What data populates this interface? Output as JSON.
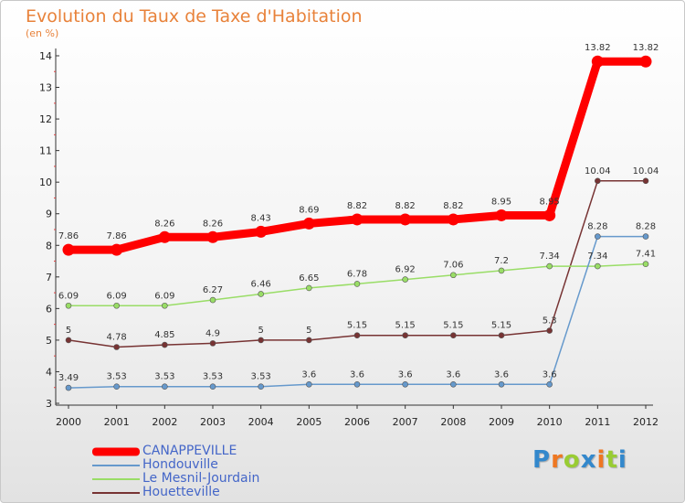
{
  "header": {
    "title": "Evolution du Taux de Taxe d'Habitation",
    "unit": "(en %)"
  },
  "chart_data": {
    "type": "line",
    "x": [
      "2000",
      "2001",
      "2002",
      "2003",
      "2004",
      "2005",
      "2006",
      "2007",
      "2008",
      "2009",
      "2010",
      "2011",
      "2012"
    ],
    "y_ticks": [
      3,
      4,
      5,
      6,
      7,
      8,
      9,
      10,
      11,
      12,
      13,
      14
    ],
    "ylim": [
      3,
      14
    ],
    "grid": false,
    "legend_position": "bottom-left",
    "series": [
      {
        "name": "CANAPPEVILLE",
        "color": "#ff0000",
        "values": [
          7.86,
          7.86,
          8.26,
          8.26,
          8.43,
          8.69,
          8.82,
          8.82,
          8.82,
          8.95,
          8.95,
          13.82,
          13.82
        ],
        "labels": [
          "7.86",
          "7.86",
          "8.26",
          "8.26",
          "8.43",
          "8.69",
          "8.82",
          "8.82",
          "8.82",
          "8.95",
          "8.95",
          "13.82",
          "13.82"
        ]
      },
      {
        "name": "Hondouville",
        "color": "#6699cc",
        "values": [
          3.49,
          3.53,
          3.53,
          3.53,
          3.53,
          3.6,
          3.6,
          3.6,
          3.6,
          3.6,
          3.6,
          8.28,
          8.28
        ],
        "labels": [
          "3.49",
          "3.53",
          "3.53",
          "3.53",
          "3.53",
          "3.6",
          "3.6",
          "3.6",
          "3.6",
          "3.6",
          "3.6",
          "8.28",
          "8.28"
        ]
      },
      {
        "name": "Le Mesnil-Jourdain",
        "color": "#99dd66",
        "values": [
          6.09,
          6.09,
          6.09,
          6.27,
          6.46,
          6.65,
          6.78,
          6.92,
          7.06,
          7.2,
          7.34,
          7.34,
          7.41
        ],
        "labels": [
          "6.09",
          "6.09",
          "6.09",
          "6.27",
          "6.46",
          "6.65",
          "6.78",
          "6.92",
          "7.06",
          "7.2",
          "7.34",
          "7.34",
          "7.41"
        ]
      },
      {
        "name": "Houetteville",
        "color": "#773333",
        "values": [
          5,
          4.78,
          4.85,
          4.9,
          5,
          5,
          5.15,
          5.15,
          5.15,
          5.15,
          5.3,
          10.04,
          10.04
        ],
        "labels": [
          "5",
          "4.78",
          "4.85",
          "4.9",
          "5",
          "5",
          "5.15",
          "5.15",
          "5.15",
          "5.15",
          "5.3",
          "10.04",
          "10.04"
        ]
      }
    ]
  },
  "legend": {
    "items": [
      {
        "label": "CANAPPEVILLE",
        "color": "#ff0000"
      },
      {
        "label": "Hondouville",
        "color": "#6699cc"
      },
      {
        "label": "Le Mesnil-Jourdain",
        "color": "#99dd66"
      },
      {
        "label": "Houetteville",
        "color": "#773333"
      }
    ]
  },
  "logo": {
    "letters": [
      "P",
      "r",
      "o",
      "x",
      "i",
      "t",
      "i"
    ],
    "colors": [
      "#3388cc",
      "#ee7722",
      "#99cc33",
      "#3388cc",
      "#ee7722",
      "#99cc33",
      "#3388cc"
    ]
  }
}
